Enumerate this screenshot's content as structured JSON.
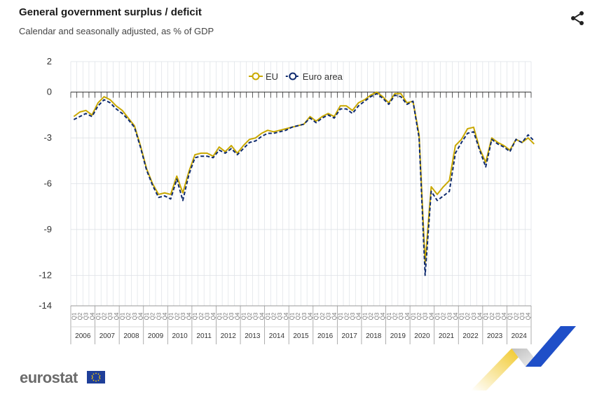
{
  "header": {
    "title": "General government surplus / deficit",
    "subtitle": "Calendar and seasonally adjusted, as % of GDP"
  },
  "brand": {
    "logo_text": "eurostat"
  },
  "icons": {
    "share": "share-icon",
    "flag": "eu-flag-icon"
  },
  "colors": {
    "eu": "#c9a800",
    "euro_area": "#0e2a6e",
    "grid": "#dde1e6",
    "axis": "#333333",
    "deco_yellow": "#f0c419",
    "deco_blue": "#1f4fc8"
  },
  "chart_data": {
    "type": "line",
    "title": "General government surplus / deficit",
    "subtitle": "Calendar and seasonally adjusted, as % of GDP",
    "ylim": [
      -14,
      2
    ],
    "yticks": [
      2,
      0,
      -3,
      -6,
      -9,
      -12,
      -14
    ],
    "grid": true,
    "legend_position": "top-center",
    "quarter_labels": [
      "Q1",
      "Q2",
      "Q3",
      "Q4"
    ],
    "years": [
      "2006",
      "2007",
      "2008",
      "2009",
      "2010",
      "2011",
      "2012",
      "2013",
      "2014",
      "2015",
      "2016",
      "2017",
      "2018",
      "2019",
      "2020",
      "2021",
      "2022",
      "2023",
      "2024"
    ],
    "series": [
      {
        "name": "EU",
        "color": "#c9a800",
        "style": "solid",
        "values": [
          -1.6,
          -1.3,
          -1.2,
          -1.5,
          -0.7,
          -0.3,
          -0.5,
          -0.9,
          -1.2,
          -1.7,
          -2.2,
          -3.5,
          -5.0,
          -6.0,
          -6.7,
          -6.6,
          -6.7,
          -5.5,
          -6.6,
          -5.2,
          -4.1,
          -4.0,
          -4.0,
          -4.2,
          -3.6,
          -3.9,
          -3.5,
          -4.0,
          -3.5,
          -3.1,
          -3.0,
          -2.7,
          -2.5,
          -2.6,
          -2.5,
          -2.4,
          -2.3,
          -2.2,
          -2.1,
          -1.6,
          -1.9,
          -1.6,
          -1.4,
          -1.6,
          -0.9,
          -0.9,
          -1.2,
          -0.7,
          -0.5,
          -0.2,
          0.0,
          -0.3,
          -0.7,
          -0.1,
          -0.1,
          -0.7,
          -0.6,
          -2.8,
          -11.2,
          -6.2,
          -6.7,
          -6.2,
          -5.8,
          -3.5,
          -3.1,
          -2.4,
          -2.3,
          -3.7,
          -4.6,
          -3.0,
          -3.3,
          -3.5,
          -3.8,
          -3.1,
          -3.3,
          -3.0,
          -3.4
        ]
      },
      {
        "name": "Euro area",
        "color": "#0e2a6e",
        "style": "dashed",
        "values": [
          -1.8,
          -1.6,
          -1.4,
          -1.6,
          -0.9,
          -0.5,
          -0.7,
          -1.1,
          -1.4,
          -1.8,
          -2.3,
          -3.6,
          -5.1,
          -6.1,
          -6.9,
          -6.8,
          -7.0,
          -5.7,
          -7.1,
          -5.4,
          -4.3,
          -4.2,
          -4.2,
          -4.3,
          -3.8,
          -4.0,
          -3.7,
          -4.1,
          -3.7,
          -3.3,
          -3.2,
          -2.9,
          -2.7,
          -2.7,
          -2.6,
          -2.5,
          -2.3,
          -2.2,
          -2.1,
          -1.7,
          -2.0,
          -1.7,
          -1.5,
          -1.7,
          -1.1,
          -1.1,
          -1.4,
          -0.9,
          -0.6,
          -0.3,
          -0.1,
          -0.4,
          -0.8,
          -0.2,
          -0.3,
          -0.8,
          -0.6,
          -3.0,
          -12.0,
          -6.5,
          -7.1,
          -6.8,
          -6.5,
          -4.0,
          -3.3,
          -2.7,
          -2.6,
          -3.8,
          -4.9,
          -3.1,
          -3.4,
          -3.6,
          -3.9,
          -3.1,
          -3.3,
          -2.8,
          -3.2
        ]
      }
    ]
  }
}
